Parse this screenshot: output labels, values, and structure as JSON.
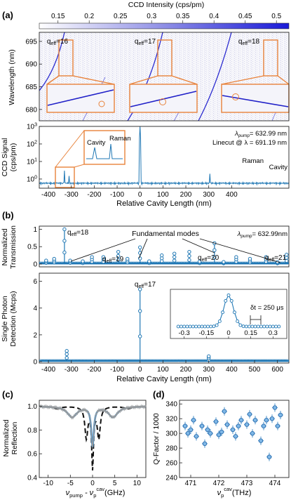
{
  "colorbar": {
    "title": "CCD Intensity (cps/pm)",
    "ticks": [
      "0.15",
      "0.2",
      "0.25",
      "0.3",
      "0.35",
      "0.4",
      "0.45",
      "0.5"
    ],
    "range": [
      0.12,
      0.52
    ]
  },
  "panels": {
    "a": {
      "label": "(a)",
      "map": {
        "ylabel": "Wavelength (nm)",
        "yticks": [
          "695",
          "690",
          "685",
          "680"
        ],
        "ylim": [
          677.5,
          697
        ],
        "modes": [
          {
            "label": "q",
            "sub": "eff",
            "val": "=16"
          },
          {
            "label": "q",
            "sub": "eff",
            "val": "=17"
          },
          {
            "label": "q",
            "sub": "eff",
            "val": "=18"
          }
        ]
      },
      "spectrum": {
        "ylabel": "CCD Signal",
        "ylabel2": "(cps/pm)",
        "yticks": [
          {
            "base": "10",
            "exp": "3"
          },
          {
            "base": "10",
            "exp": "2"
          },
          {
            "base": "10",
            "exp": "1"
          },
          {
            "base": "10",
            "exp": "0"
          }
        ],
        "inset_labels": [
          "Cavity",
          "Raman"
        ],
        "right_labels": [
          "Raman",
          "Cavity"
        ],
        "lambda_pump": "λ",
        "lambda_pump_sub": "pump",
        "lambda_pump_val": "= 632.99 nm",
        "linecut": "Linecut @ λ = 691.19 nm",
        "xlabel": "Relative Cavity Length (nm)",
        "xticks": [
          "-400",
          "-300",
          "-200",
          "-100",
          "0",
          "100",
          "200",
          "300",
          "400"
        ]
      }
    },
    "b": {
      "label": "(b)",
      "transmission": {
        "ylabel": "Normalized",
        "ylabel2": "Transmission",
        "yticks": [
          "0",
          "0.5",
          "1"
        ],
        "fundamental": "Fundamental modes",
        "lambda_pump": "λ",
        "lambda_pump_sub": "pump",
        "lambda_pump_val": "= 632.99nm",
        "modes": [
          {
            "label": "q",
            "sub": "eff",
            "val": "=18"
          },
          {
            "label": "q",
            "sub": "eff",
            "val": "=19"
          },
          {
            "label": "q",
            "sub": "eff",
            "val": "=20"
          },
          {
            "label": "q",
            "sub": "eff",
            "val": "=21"
          }
        ]
      },
      "detection": {
        "ylabel": "Single Photon",
        "ylabel2": "Detection (Mcps)",
        "yticks": [
          "0",
          "2",
          "4",
          "6"
        ],
        "mode": {
          "label": "q",
          "sub": "eff",
          "val": "=17"
        },
        "inset_xticks": [
          "-0.3",
          "-0.15",
          "0",
          "0.15",
          "0.3"
        ],
        "inset_dt": "δt = 250 μs",
        "xlabel": "Relative Cavity Length (nm)",
        "xticks": [
          "-400",
          "-300",
          "-200",
          "-100",
          "0",
          "100",
          "200",
          "300",
          "400",
          "500",
          "600"
        ]
      }
    },
    "c": {
      "label": "(c)",
      "ylabel": "Normalized",
      "ylabel2": "Reflection",
      "yticks": [
        "0.4",
        "0.6",
        "0.8",
        "1.0"
      ],
      "xticks": [
        "-10",
        "-5",
        "0",
        "5",
        "10"
      ],
      "xlabel_a": "ν",
      "xlabel_a_sub": "pump",
      "xlabel_b": " - ν",
      "xlabel_b_sup": "cav",
      "xlabel_b_sub": "p",
      "xlabel_unit": "(GHz)"
    },
    "d": {
      "label": "(d)",
      "ylabel": "Q-Factor / 1000",
      "yticks": [
        "240",
        "260",
        "280",
        "300",
        "320",
        "340"
      ],
      "xticks": [
        "471",
        "472",
        "473",
        "474"
      ],
      "xlabel_a": "ν",
      "xlabel_a_sup": "cav",
      "xlabel_a_sub": "p",
      "xlabel_unit": "(THz)"
    }
  },
  "chart_data": [
    {
      "type": "heatmap",
      "title": "",
      "ylabel": "Wavelength (nm)",
      "xlabel": "Relative Cavity Length (nm)",
      "xlim": [
        -440,
        650
      ],
      "ylim": [
        677.5,
        697
      ],
      "series": [
        {
          "name": "q_eff=16",
          "x": [
            -440,
            -330
          ],
          "y": [
            681,
            697
          ]
        },
        {
          "name": "q_eff=17",
          "x": [
            -40,
            60
          ],
          "y": [
            680.5,
            697
          ]
        },
        {
          "name": "q_eff=18",
          "x": [
            310,
            400
          ],
          "y": [
            681,
            697
          ]
        }
      ]
    },
    {
      "type": "line",
      "title": "",
      "xlabel": "Relative Cavity Length (nm)",
      "ylabel": "CCD Signal (cps/pm)",
      "yscale": "log",
      "xlim": [
        -440,
        650
      ],
      "ylim": [
        0.3,
        1000
      ],
      "x": [
        -440,
        -340,
        -330,
        -320,
        -310,
        -200,
        0,
        200,
        300,
        305,
        345,
        400,
        650
      ],
      "y": [
        0.5,
        0.6,
        3,
        0.7,
        1.5,
        0.5,
        1000,
        0.5,
        0.6,
        2,
        1,
        0.5,
        0.5
      ]
    },
    {
      "type": "scatter",
      "title": "",
      "xlabel": "Relative Cavity Length (nm)",
      "ylabel": "Normalized Transmission",
      "xlim": [
        -440,
        650
      ],
      "ylim": [
        0,
        1.05
      ],
      "x": [
        -410,
        -375,
        -330,
        -305,
        -250,
        -210,
        -160,
        -95,
        -55,
        0,
        40,
        95,
        150,
        215,
        260,
        325,
        365,
        420,
        480,
        550,
        600,
        640
      ],
      "y": [
        0.1,
        0.15,
        1.0,
        0.1,
        0.08,
        0.2,
        0.2,
        0.35,
        0.15,
        0.48,
        0.08,
        0.25,
        0.3,
        0.35,
        0.07,
        0.6,
        0.06,
        0.2,
        0.15,
        0.2,
        0.06,
        0.27
      ]
    },
    {
      "type": "scatter",
      "title": "",
      "xlabel": "Relative Cavity Length (nm)",
      "ylabel": "Single Photon Detection (Mcps)",
      "xlim": [
        -440,
        650
      ],
      "ylim": [
        0,
        6.5
      ],
      "x": [
        -320,
        0,
        300
      ],
      "y": [
        0.8,
        5.4,
        0.4
      ]
    },
    {
      "type": "line",
      "title": "",
      "xlabel": "ν_pump - ν_p^cav (GHz)",
      "ylabel": "Normalized Reflection",
      "xlim": [
        -12,
        12
      ],
      "ylim": [
        0.4,
        1.05
      ],
      "x": [
        -12,
        -8,
        -5,
        -3,
        -1,
        0,
        1,
        3,
        5,
        8,
        12
      ],
      "y": [
        1.0,
        0.99,
        0.92,
        0.94,
        0.88,
        0.65,
        0.88,
        0.94,
        0.92,
        0.99,
        1.0
      ]
    },
    {
      "type": "scatter",
      "title": "",
      "xlabel": "ν_p^cav (THz)",
      "ylabel": "Q-Factor / 1000",
      "xlim": [
        470.6,
        474.5
      ],
      "ylim": [
        240,
        345
      ],
      "x": [
        470.8,
        470.9,
        471.0,
        471.1,
        471.2,
        471.4,
        471.5,
        471.6,
        471.7,
        471.9,
        472.0,
        472.1,
        472.2,
        472.3,
        472.5,
        472.6,
        472.7,
        472.8,
        473.0,
        473.1,
        473.2,
        473.3,
        473.5,
        473.6,
        473.7,
        473.8,
        473.9,
        474.0,
        474.1,
        474.2
      ],
      "y": [
        310,
        300,
        305,
        318,
        296,
        310,
        286,
        305,
        300,
        316,
        298,
        302,
        330,
        312,
        305,
        296,
        310,
        318,
        312,
        326,
        300,
        318,
        290,
        310,
        318,
        268,
        320,
        335,
        310,
        325
      ]
    }
  ]
}
